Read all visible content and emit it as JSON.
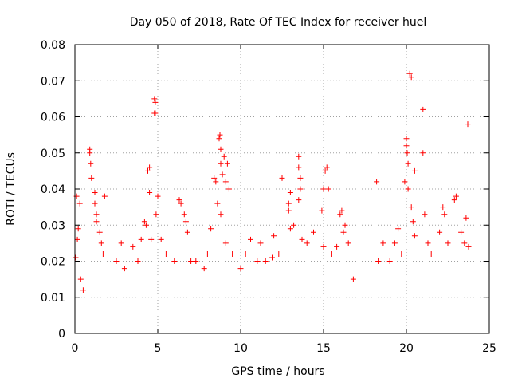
{
  "chart_data": {
    "type": "scatter",
    "title": "Day 050 of 2018, Rate Of TEC Index for receiver huel",
    "xlabel": "GPS time / hours",
    "ylabel": "ROTI / TECUs",
    "xlim": [
      0,
      25
    ],
    "ylim": [
      0,
      0.08
    ],
    "x_ticks": [
      0,
      5,
      10,
      15,
      20,
      25
    ],
    "x_tick_labels": [
      "0",
      "5",
      "10",
      "15",
      "20",
      "25"
    ],
    "y_ticks": [
      0,
      0.01,
      0.02,
      0.03,
      0.04,
      0.05,
      0.06,
      0.07,
      0.08
    ],
    "y_tick_labels": [
      "0",
      "0.01",
      "0.02",
      "0.03",
      "0.04",
      "0.05",
      "0.06",
      "0.07",
      "0.08"
    ],
    "grid": true,
    "marker": "+",
    "marker_color": "#ff0000",
    "series": [
      {
        "name": "ROTI",
        "points": [
          [
            0.05,
            0.021
          ],
          [
            0.1,
            0.038
          ],
          [
            0.15,
            0.026
          ],
          [
            0.2,
            0.029
          ],
          [
            0.3,
            0.036
          ],
          [
            0.35,
            0.015
          ],
          [
            0.5,
            0.012
          ],
          [
            0.9,
            0.051
          ],
          [
            0.9,
            0.05
          ],
          [
            0.95,
            0.047
          ],
          [
            1.0,
            0.043
          ],
          [
            1.2,
            0.039
          ],
          [
            1.2,
            0.036
          ],
          [
            1.3,
            0.033
          ],
          [
            1.3,
            0.031
          ],
          [
            1.5,
            0.028
          ],
          [
            1.6,
            0.025
          ],
          [
            1.7,
            0.022
          ],
          [
            1.8,
            0.038
          ],
          [
            2.5,
            0.02
          ],
          [
            2.8,
            0.025
          ],
          [
            3.0,
            0.018
          ],
          [
            3.5,
            0.024
          ],
          [
            3.8,
            0.02
          ],
          [
            4.0,
            0.026
          ],
          [
            4.2,
            0.031
          ],
          [
            4.3,
            0.03
          ],
          [
            4.4,
            0.045
          ],
          [
            4.5,
            0.046
          ],
          [
            4.5,
            0.039
          ],
          [
            4.6,
            0.026
          ],
          [
            4.8,
            0.065
          ],
          [
            4.85,
            0.064
          ],
          [
            4.8,
            0.061
          ],
          [
            4.85,
            0.061
          ],
          [
            4.9,
            0.033
          ],
          [
            5.0,
            0.038
          ],
          [
            5.2,
            0.026
          ],
          [
            5.5,
            0.022
          ],
          [
            6.0,
            0.02
          ],
          [
            6.3,
            0.037
          ],
          [
            6.4,
            0.036
          ],
          [
            6.6,
            0.033
          ],
          [
            6.7,
            0.031
          ],
          [
            6.8,
            0.028
          ],
          [
            7.0,
            0.02
          ],
          [
            7.3,
            0.02
          ],
          [
            7.8,
            0.018
          ],
          [
            8.0,
            0.022
          ],
          [
            8.2,
            0.029
          ],
          [
            8.4,
            0.043
          ],
          [
            8.5,
            0.042
          ],
          [
            8.7,
            0.054
          ],
          [
            8.75,
            0.055
          ],
          [
            8.8,
            0.051
          ],
          [
            8.8,
            0.047
          ],
          [
            8.9,
            0.044
          ],
          [
            9.0,
            0.049
          ],
          [
            9.1,
            0.042
          ],
          [
            9.2,
            0.047
          ],
          [
            9.3,
            0.04
          ],
          [
            8.6,
            0.036
          ],
          [
            8.8,
            0.033
          ],
          [
            9.1,
            0.025
          ],
          [
            9.5,
            0.022
          ],
          [
            10.0,
            0.018
          ],
          [
            10.3,
            0.022
          ],
          [
            10.6,
            0.026
          ],
          [
            11.0,
            0.02
          ],
          [
            11.2,
            0.025
          ],
          [
            11.5,
            0.02
          ],
          [
            11.9,
            0.021
          ],
          [
            12.0,
            0.027
          ],
          [
            12.3,
            0.022
          ],
          [
            12.5,
            0.043
          ],
          [
            12.9,
            0.036
          ],
          [
            12.9,
            0.034
          ],
          [
            13.0,
            0.039
          ],
          [
            13.0,
            0.029
          ],
          [
            13.2,
            0.03
          ],
          [
            13.5,
            0.049
          ],
          [
            13.5,
            0.046
          ],
          [
            13.6,
            0.043
          ],
          [
            13.6,
            0.04
          ],
          [
            13.5,
            0.037
          ],
          [
            13.7,
            0.026
          ],
          [
            14.0,
            0.025
          ],
          [
            14.4,
            0.028
          ],
          [
            14.9,
            0.034
          ],
          [
            15.0,
            0.04
          ],
          [
            15.0,
            0.024
          ],
          [
            15.1,
            0.045
          ],
          [
            15.2,
            0.046
          ],
          [
            15.3,
            0.04
          ],
          [
            15.5,
            0.022
          ],
          [
            15.8,
            0.024
          ],
          [
            16.0,
            0.033
          ],
          [
            16.1,
            0.034
          ],
          [
            16.2,
            0.028
          ],
          [
            16.3,
            0.03
          ],
          [
            16.5,
            0.025
          ],
          [
            16.8,
            0.015
          ],
          [
            18.2,
            0.042
          ],
          [
            18.3,
            0.02
          ],
          [
            18.6,
            0.025
          ],
          [
            19.0,
            0.02
          ],
          [
            19.3,
            0.025
          ],
          [
            19.5,
            0.029
          ],
          [
            19.7,
            0.022
          ],
          [
            19.9,
            0.042
          ],
          [
            20.0,
            0.052
          ],
          [
            20.0,
            0.054
          ],
          [
            20.05,
            0.05
          ],
          [
            20.1,
            0.047
          ],
          [
            20.1,
            0.04
          ],
          [
            20.2,
            0.072
          ],
          [
            20.3,
            0.071
          ],
          [
            20.3,
            0.035
          ],
          [
            20.4,
            0.031
          ],
          [
            20.5,
            0.027
          ],
          [
            20.5,
            0.045
          ],
          [
            21.0,
            0.062
          ],
          [
            21.0,
            0.05
          ],
          [
            21.1,
            0.033
          ],
          [
            21.3,
            0.025
          ],
          [
            21.5,
            0.022
          ],
          [
            22.0,
            0.028
          ],
          [
            22.2,
            0.035
          ],
          [
            22.3,
            0.033
          ],
          [
            22.5,
            0.025
          ],
          [
            22.9,
            0.037
          ],
          [
            23.0,
            0.038
          ],
          [
            23.3,
            0.028
          ],
          [
            23.5,
            0.025
          ],
          [
            23.6,
            0.032
          ],
          [
            23.7,
            0.058
          ],
          [
            23.75,
            0.024
          ]
        ]
      }
    ]
  }
}
